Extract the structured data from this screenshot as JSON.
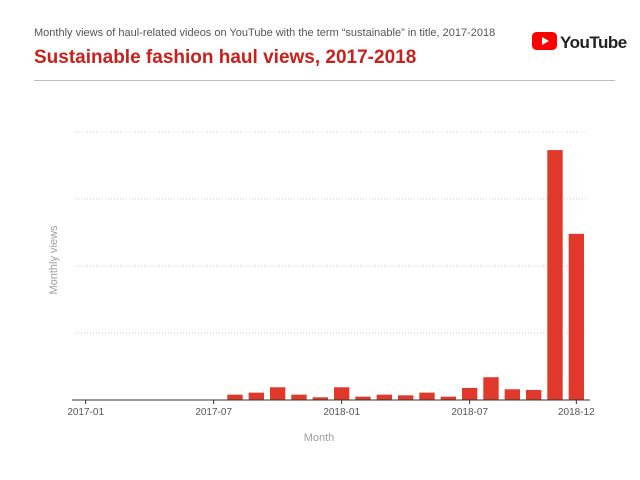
{
  "header": {
    "subtitle": "Monthly views of haul-related videos on YouTube with the term “sustainable” in title, 2017-2018",
    "title": "Sustainable fashion haul views, 2017-2018",
    "logo_text": "YouTube"
  },
  "colors": {
    "bar": "#e0392b",
    "title": "#c9201c",
    "logo_red": "#ff0000"
  },
  "chart_data": {
    "type": "bar",
    "title": "Sustainable fashion haul views, 2017-2018",
    "subtitle": "Monthly views of haul-related videos on YouTube with the term “sustainable” in title, 2017-2018",
    "xlabel": "Month",
    "ylabel": "Monthly views",
    "y_tick_labels_shown": false,
    "grid": "horizontal dotted",
    "categories": [
      "2017-01",
      "2017-02",
      "2017-03",
      "2017-04",
      "2017-05",
      "2017-06",
      "2017-07",
      "2017-08",
      "2017-09",
      "2017-10",
      "2017-11",
      "2017-12",
      "2018-01",
      "2018-02",
      "2018-03",
      "2018-04",
      "2018-05",
      "2018-06",
      "2018-07",
      "2018-08",
      "2018-09",
      "2018-10",
      "2018-11",
      "2018-12"
    ],
    "x_tick_labels": [
      "2017-01",
      "2017-07",
      "2018-01",
      "2018-07",
      "2018-12"
    ],
    "values": [
      0,
      0,
      0,
      0,
      0,
      0,
      0,
      0.8,
      1.1,
      1.9,
      0.8,
      0.4,
      1.9,
      0.5,
      0.8,
      0.7,
      1.1,
      0.5,
      1.8,
      3.4,
      1.6,
      1.5,
      37.3,
      24.8
    ],
    "ylim": [
      0,
      40
    ],
    "gridlines": [
      10,
      20,
      30,
      40
    ]
  }
}
